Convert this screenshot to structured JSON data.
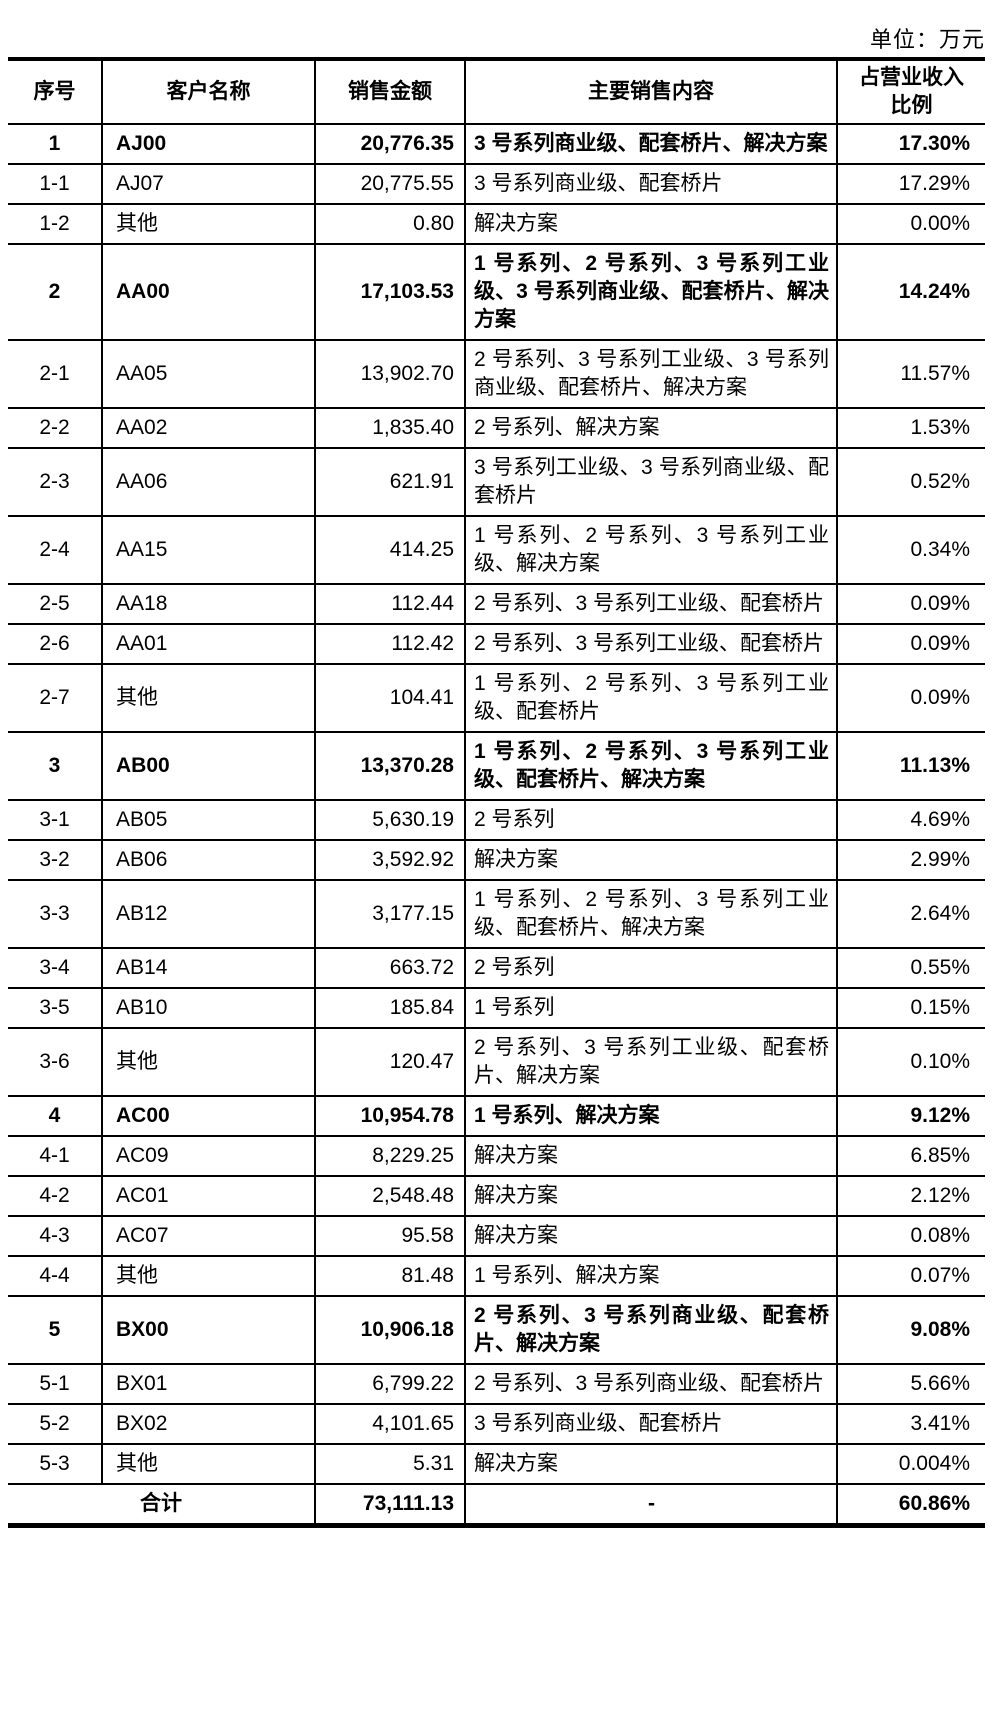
{
  "page": {
    "unit_label": "单位：万元"
  },
  "table": {
    "headers": [
      "序号",
      "客户名称",
      "销售金额",
      "主要销售内容",
      "占营业收入\n比例"
    ],
    "rows": [
      {
        "no": "1",
        "name": "AJ00",
        "amount": "20,776.35",
        "content": "3 号系列商业级、配套桥片、解决方案",
        "pct": "17.30%",
        "bold": true
      },
      {
        "no": "1-1",
        "name": "AJ07",
        "amount": "20,775.55",
        "content": "3 号系列商业级、配套桥片",
        "pct": "17.29%"
      },
      {
        "no": "1-2",
        "name": "其他",
        "amount": "0.80",
        "content": "解决方案",
        "pct": "0.00%"
      },
      {
        "no": "2",
        "name": "AA00",
        "amount": "17,103.53",
        "content": "1 号系列、2 号系列、3 号系列工业级、3 号系列商业级、配套桥片、解决方案",
        "pct": "14.24%",
        "bold": true
      },
      {
        "no": "2-1",
        "name": "AA05",
        "amount": "13,902.70",
        "content": "2 号系列、3 号系列工业级、3 号系列商业级、配套桥片、解决方案",
        "pct": "11.57%"
      },
      {
        "no": "2-2",
        "name": "AA02",
        "amount": "1,835.40",
        "content": "2 号系列、解决方案",
        "pct": "1.53%"
      },
      {
        "no": "2-3",
        "name": "AA06",
        "amount": "621.91",
        "content": "3 号系列工业级、3 号系列商业级、配套桥片",
        "pct": "0.52%"
      },
      {
        "no": "2-4",
        "name": "AA15",
        "amount": "414.25",
        "content": "1 号系列、2 号系列、3 号系列工业级、解决方案",
        "pct": "0.34%"
      },
      {
        "no": "2-5",
        "name": "AA18",
        "amount": "112.44",
        "content": "2 号系列、3 号系列工业级、配套桥片",
        "pct": "0.09%"
      },
      {
        "no": "2-6",
        "name": "AA01",
        "amount": "112.42",
        "content": "2 号系列、3 号系列工业级、配套桥片",
        "pct": "0.09%"
      },
      {
        "no": "2-7",
        "name": "其他",
        "amount": "104.41",
        "content": "1 号系列、2 号系列、3 号系列工业级、配套桥片",
        "pct": "0.09%"
      },
      {
        "no": "3",
        "name": "AB00",
        "amount": "13,370.28",
        "content": "1 号系列、2 号系列、3 号系列工业级、配套桥片、解决方案",
        "pct": "11.13%",
        "bold": true
      },
      {
        "no": "3-1",
        "name": "AB05",
        "amount": "5,630.19",
        "content": "2 号系列",
        "pct": "4.69%"
      },
      {
        "no": "3-2",
        "name": "AB06",
        "amount": "3,592.92",
        "content": "解决方案",
        "pct": "2.99%"
      },
      {
        "no": "3-3",
        "name": "AB12",
        "amount": "3,177.15",
        "content": "1 号系列、2 号系列、3 号系列工业级、配套桥片、解决方案",
        "pct": "2.64%"
      },
      {
        "no": "3-4",
        "name": "AB14",
        "amount": "663.72",
        "content": "2 号系列",
        "pct": "0.55%"
      },
      {
        "no": "3-5",
        "name": "AB10",
        "amount": "185.84",
        "content": "1 号系列",
        "pct": "0.15%"
      },
      {
        "no": "3-6",
        "name": "其他",
        "amount": "120.47",
        "content": "2 号系列、3 号系列工业级、配套桥片、解决方案",
        "pct": "0.10%"
      },
      {
        "no": "4",
        "name": "AC00",
        "amount": "10,954.78",
        "content": "1 号系列、解决方案",
        "pct": "9.12%",
        "bold": true
      },
      {
        "no": "4-1",
        "name": "AC09",
        "amount": "8,229.25",
        "content": "解决方案",
        "pct": "6.85%"
      },
      {
        "no": "4-2",
        "name": "AC01",
        "amount": "2,548.48",
        "content": "解决方案",
        "pct": "2.12%"
      },
      {
        "no": "4-3",
        "name": "AC07",
        "amount": "95.58",
        "content": "解决方案",
        "pct": "0.08%"
      },
      {
        "no": "4-4",
        "name": "其他",
        "amount": "81.48",
        "content": "1 号系列、解决方案",
        "pct": "0.07%"
      },
      {
        "no": "5",
        "name": "BX00",
        "amount": "10,906.18",
        "content": "2 号系列、3 号系列商业级、配套桥片、解决方案",
        "pct": "9.08%",
        "bold": true
      },
      {
        "no": "5-1",
        "name": "BX01",
        "amount": "6,799.22",
        "content": "2 号系列、3 号系列商业级、配套桥片",
        "pct": "5.66%"
      },
      {
        "no": "5-2",
        "name": "BX02",
        "amount": "4,101.65",
        "content": "3 号系列商业级、配套桥片",
        "pct": "3.41%"
      },
      {
        "no": "5-3",
        "name": "其他",
        "amount": "5.31",
        "content": "解决方案",
        "pct": "0.004%"
      },
      {
        "no": "",
        "name": "合计",
        "amount": "73,111.13",
        "content": "-",
        "pct": "60.86%",
        "bold": true,
        "total": true
      }
    ]
  }
}
